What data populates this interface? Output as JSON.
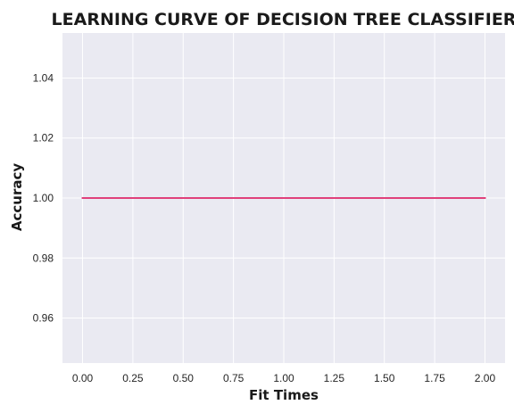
{
  "chart_data": {
    "type": "line",
    "title": "LEARNING CURVE OF DECISION TREE CLASSIFIER",
    "xlabel": "Fit Times",
    "ylabel": "Accuracy",
    "x": [
      0.0,
      2.0
    ],
    "series": [
      {
        "values": [
          1.0,
          1.0
        ],
        "color": "#e0407b"
      }
    ],
    "xlim": [
      -0.1,
      2.1
    ],
    "ylim": [
      0.945,
      1.055
    ],
    "xticks": [
      "0.00",
      "0.25",
      "0.50",
      "0.75",
      "1.00",
      "1.25",
      "1.50",
      "1.75",
      "2.00"
    ],
    "yticks": [
      "0.96",
      "0.98",
      "1.00",
      "1.02",
      "1.04"
    ],
    "grid": true,
    "background_color": "#eaeaf2",
    "grid_color": "#ffffff"
  }
}
